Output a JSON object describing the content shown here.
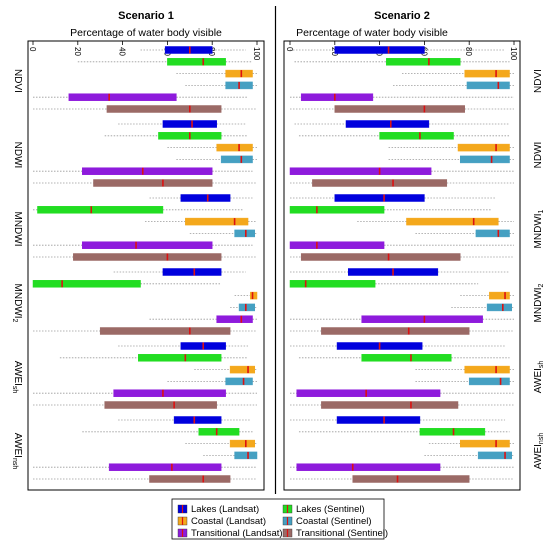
{
  "chart_data": [
    {
      "type": "boxplot",
      "title": "Scenario 1",
      "xlabel": "Percentage of water body visible",
      "xlim": [
        0,
        100
      ],
      "x_ticks": [
        0,
        20,
        40,
        60,
        80,
        100
      ],
      "grid": false,
      "groups": [
        {
          "name": "NDVI",
          "name_sub": "",
          "boxes": [
            {
              "series": "Lakes (Landsat)",
              "min": 48,
              "q1": 59,
              "median": 70,
              "q3": 80,
              "max": 95
            },
            {
              "series": "Lakes (Sentinel)",
              "min": 20,
              "q1": 60,
              "median": 76,
              "q3": 86,
              "max": 98
            },
            {
              "series": "Coastal (Landsat)",
              "min": 64,
              "q1": 86,
              "median": 93,
              "q3": 98,
              "max": 100
            },
            {
              "series": "Coastal (Sentinel)",
              "min": 68,
              "q1": 86,
              "median": 92,
              "q3": 98,
              "max": 100
            },
            {
              "series": "Transitional (Landsat)",
              "min": 0,
              "q1": 16,
              "median": 34,
              "q3": 64,
              "max": 96
            },
            {
              "series": "Transitional (Sentinel)",
              "min": 0,
              "q1": 33,
              "median": 70,
              "q3": 84,
              "max": 100
            }
          ]
        },
        {
          "name": "NDWI",
          "name_sub": "",
          "boxes": [
            {
              "series": "Lakes (Landsat)",
              "min": 38,
              "q1": 58,
              "median": 71,
              "q3": 82,
              "max": 95
            },
            {
              "series": "Lakes (Sentinel)",
              "min": 32,
              "q1": 56,
              "median": 70,
              "q3": 84,
              "max": 96
            },
            {
              "series": "Coastal (Landsat)",
              "min": 60,
              "q1": 82,
              "median": 92,
              "q3": 98,
              "max": 100
            },
            {
              "series": "Coastal (Sentinel)",
              "min": 64,
              "q1": 84,
              "median": 93,
              "q3": 98,
              "max": 100
            },
            {
              "series": "Transitional (Landsat)",
              "min": 0,
              "q1": 22,
              "median": 49,
              "q3": 80,
              "max": 98
            },
            {
              "series": "Transitional (Sentinel)",
              "min": 0,
              "q1": 27,
              "median": 58,
              "q3": 80,
              "max": 100
            }
          ]
        },
        {
          "name": "MNDWI",
          "name_sub": "",
          "boxes": [
            {
              "series": "Lakes (Landsat)",
              "min": 52,
              "q1": 66,
              "median": 78,
              "q3": 88,
              "max": 98
            },
            {
              "series": "Lakes (Sentinel)",
              "min": 0,
              "q1": 2,
              "median": 26,
              "q3": 58,
              "max": 94
            },
            {
              "series": "Coastal (Landsat)",
              "min": 50,
              "q1": 68,
              "median": 90,
              "q3": 96,
              "max": 100
            },
            {
              "series": "Coastal (Sentinel)",
              "min": 70,
              "q1": 90,
              "median": 95,
              "q3": 99,
              "max": 100
            },
            {
              "series": "Transitional (Landsat)",
              "min": 0,
              "q1": 22,
              "median": 46,
              "q3": 80,
              "max": 98
            },
            {
              "series": "Transitional (Sentinel)",
              "min": 0,
              "q1": 18,
              "median": 60,
              "q3": 84,
              "max": 100
            }
          ]
        },
        {
          "name": "MNDWI",
          "name_sub": "2",
          "boxes": [
            {
              "series": "Lakes (Landsat)",
              "min": 36,
              "q1": 58,
              "median": 72,
              "q3": 84,
              "max": 95
            },
            {
              "series": "Lakes (Sentinel)",
              "min": 0,
              "q1": 0,
              "median": 13,
              "q3": 48,
              "max": 84
            },
            {
              "series": "Coastal (Landsat)",
              "min": 90,
              "q1": 97,
              "median": 98,
              "q3": 100,
              "max": 100
            },
            {
              "series": "Coastal (Sentinel)",
              "min": 88,
              "q1": 92,
              "median": 95,
              "q3": 99,
              "max": 100
            },
            {
              "series": "Transitional (Landsat)",
              "min": 52,
              "q1": 82,
              "median": 93,
              "q3": 98,
              "max": 100
            },
            {
              "series": "Transitional (Sentinel)",
              "min": 0,
              "q1": 30,
              "median": 70,
              "q3": 88,
              "max": 100
            }
          ]
        },
        {
          "name": "AWEI",
          "name_sub": "sh",
          "boxes": [
            {
              "series": "Lakes (Landsat)",
              "min": 38,
              "q1": 66,
              "median": 76,
              "q3": 86,
              "max": 96
            },
            {
              "series": "Lakes (Sentinel)",
              "min": 12,
              "q1": 47,
              "median": 68,
              "q3": 84,
              "max": 96
            },
            {
              "series": "Coastal (Landsat)",
              "min": 72,
              "q1": 88,
              "median": 96,
              "q3": 99,
              "max": 100
            },
            {
              "series": "Coastal (Sentinel)",
              "min": 60,
              "q1": 86,
              "median": 94,
              "q3": 98,
              "max": 100
            },
            {
              "series": "Transitional (Landsat)",
              "min": 0,
              "q1": 36,
              "median": 58,
              "q3": 86,
              "max": 100
            },
            {
              "series": "Transitional (Sentinel)",
              "min": 0,
              "q1": 32,
              "median": 63,
              "q3": 82,
              "max": 100
            }
          ]
        },
        {
          "name": "AWEI",
          "name_sub": "nsh",
          "boxes": [
            {
              "series": "Lakes (Landsat)",
              "min": 38,
              "q1": 63,
              "median": 72,
              "q3": 84,
              "max": 97
            },
            {
              "series": "Lakes (Sentinel)",
              "min": 22,
              "q1": 74,
              "median": 82,
              "q3": 92,
              "max": 98
            },
            {
              "series": "Coastal (Landsat)",
              "min": 68,
              "q1": 88,
              "median": 95,
              "q3": 99,
              "max": 100
            },
            {
              "series": "Coastal (Sentinel)",
              "min": 76,
              "q1": 90,
              "median": 96,
              "q3": 100,
              "max": 100
            },
            {
              "series": "Transitional (Landsat)",
              "min": 0,
              "q1": 34,
              "median": 62,
              "q3": 84,
              "max": 100
            },
            {
              "series": "Transitional (Sentinel)",
              "min": 0,
              "q1": 52,
              "median": 76,
              "q3": 88,
              "max": 100
            }
          ]
        }
      ]
    },
    {
      "type": "boxplot",
      "title": "Scenario 2",
      "xlabel": "Percentage of water body visible",
      "xlim": [
        0,
        100
      ],
      "x_ticks": [
        0,
        20,
        40,
        60,
        80,
        100
      ],
      "grid": false,
      "groups": [
        {
          "name": "NDVI",
          "name_sub": "",
          "boxes": [
            {
              "series": "Lakes (Landsat)",
              "min": 0,
              "q1": 20,
              "median": 44,
              "q3": 60,
              "max": 96
            },
            {
              "series": "Lakes (Sentinel)",
              "min": 2,
              "q1": 43,
              "median": 62,
              "q3": 76,
              "max": 98
            },
            {
              "series": "Coastal (Landsat)",
              "min": 50,
              "q1": 78,
              "median": 92,
              "q3": 98,
              "max": 100
            },
            {
              "series": "Coastal (Sentinel)",
              "min": 46,
              "q1": 79,
              "median": 93,
              "q3": 98,
              "max": 100
            },
            {
              "series": "Transitional (Landsat)",
              "min": 0,
              "q1": 5,
              "median": 20,
              "q3": 37,
              "max": 100
            },
            {
              "series": "Transitional (Sentinel)",
              "min": 0,
              "q1": 20,
              "median": 60,
              "q3": 78,
              "max": 100
            }
          ]
        },
        {
          "name": "NDWI",
          "name_sub": "",
          "boxes": [
            {
              "series": "Lakes (Landsat)",
              "min": 2,
              "q1": 25,
              "median": 45,
              "q3": 62,
              "max": 98
            },
            {
              "series": "Lakes (Sentinel)",
              "min": 4,
              "q1": 40,
              "median": 58,
              "q3": 73,
              "max": 98
            },
            {
              "series": "Coastal (Landsat)",
              "min": 44,
              "q1": 75,
              "median": 92,
              "q3": 98,
              "max": 100
            },
            {
              "series": "Coastal (Sentinel)",
              "min": 44,
              "q1": 76,
              "median": 90,
              "q3": 98,
              "max": 100
            },
            {
              "series": "Transitional (Landsat)",
              "min": 0,
              "q1": 0,
              "median": 40,
              "q3": 63,
              "max": 100
            },
            {
              "series": "Transitional (Sentinel)",
              "min": 0,
              "q1": 10,
              "median": 46,
              "q3": 70,
              "max": 100
            }
          ]
        },
        {
          "name": "MNDWI",
          "name_sub": "1",
          "boxes": [
            {
              "series": "Lakes (Landsat)",
              "min": 0,
              "q1": 20,
              "median": 42,
              "q3": 60,
              "max": 92
            },
            {
              "series": "Lakes (Sentinel)",
              "min": 0,
              "q1": 0,
              "median": 12,
              "q3": 42,
              "max": 90
            },
            {
              "series": "Coastal (Landsat)",
              "min": 30,
              "q1": 52,
              "median": 82,
              "q3": 93,
              "max": 100
            },
            {
              "series": "Coastal (Sentinel)",
              "min": 56,
              "q1": 83,
              "median": 93,
              "q3": 98,
              "max": 100
            },
            {
              "series": "Transitional (Landsat)",
              "min": 0,
              "q1": 0,
              "median": 12,
              "q3": 42,
              "max": 100
            },
            {
              "series": "Transitional (Sentinel)",
              "min": 0,
              "q1": 5,
              "median": 44,
              "q3": 76,
              "max": 100
            }
          ]
        },
        {
          "name": "MNDWI",
          "name_sub": "2",
          "boxes": [
            {
              "series": "Lakes (Landsat)",
              "min": 0,
              "q1": 26,
              "median": 46,
              "q3": 66,
              "max": 98
            },
            {
              "series": "Lakes (Sentinel)",
              "min": 0,
              "q1": 0,
              "median": 7,
              "q3": 38,
              "max": 84
            },
            {
              "series": "Coastal (Landsat)",
              "min": 76,
              "q1": 89,
              "median": 96,
              "q3": 98,
              "max": 100
            },
            {
              "series": "Coastal (Sentinel)",
              "min": 72,
              "q1": 88,
              "median": 95,
              "q3": 99,
              "max": 100
            },
            {
              "series": "Transitional (Landsat)",
              "min": 0,
              "q1": 32,
              "median": 60,
              "q3": 86,
              "max": 100
            },
            {
              "series": "Transitional (Sentinel)",
              "min": 0,
              "q1": 14,
              "median": 53,
              "q3": 80,
              "max": 100
            }
          ]
        },
        {
          "name": "AWEI",
          "name_sub": "sh",
          "boxes": [
            {
              "series": "Lakes (Landsat)",
              "min": 0,
              "q1": 21,
              "median": 40,
              "q3": 59,
              "max": 96
            },
            {
              "series": "Lakes (Sentinel)",
              "min": 4,
              "q1": 32,
              "median": 54,
              "q3": 72,
              "max": 98
            },
            {
              "series": "Coastal (Landsat)",
              "min": 56,
              "q1": 78,
              "median": 92,
              "q3": 98,
              "max": 100
            },
            {
              "series": "Coastal (Sentinel)",
              "min": 56,
              "q1": 80,
              "median": 94,
              "q3": 98,
              "max": 100
            },
            {
              "series": "Transitional (Landsat)",
              "min": 0,
              "q1": 3,
              "median": 34,
              "q3": 67,
              "max": 100
            },
            {
              "series": "Transitional (Sentinel)",
              "min": 0,
              "q1": 14,
              "median": 54,
              "q3": 75,
              "max": 100
            }
          ]
        },
        {
          "name": "AWEI",
          "name_sub": "nsh",
          "boxes": [
            {
              "series": "Lakes (Landsat)",
              "min": 0,
              "q1": 21,
              "median": 42,
              "q3": 58,
              "max": 96
            },
            {
              "series": "Lakes (Sentinel)",
              "min": 4,
              "q1": 58,
              "median": 73,
              "q3": 87,
              "max": 98
            },
            {
              "series": "Coastal (Landsat)",
              "min": 62,
              "q1": 76,
              "median": 92,
              "q3": 98,
              "max": 100
            },
            {
              "series": "Coastal (Sentinel)",
              "min": 60,
              "q1": 84,
              "median": 96,
              "q3": 99,
              "max": 100
            },
            {
              "series": "Transitional (Landsat)",
              "min": 0,
              "q1": 3,
              "median": 28,
              "q3": 67,
              "max": 100
            },
            {
              "series": "Transitional (Sentinel)",
              "min": 0,
              "q1": 28,
              "median": 48,
              "q3": 80,
              "max": 100
            }
          ]
        }
      ]
    }
  ],
  "series_colors": {
    "Lakes (Landsat)": "#0000dd",
    "Lakes (Sentinel)": "#22dd22",
    "Coastal (Landsat)": "#f4a81c",
    "Coastal (Sentinel)": "#45a0c2",
    "Transitional (Landsat)": "#8e1bdc",
    "Transitional (Sentinel)": "#9b6a66"
  },
  "median_color": "#dd1111",
  "legend": {
    "placement": "bottom-center",
    "items": [
      {
        "label": "Lakes (Landsat)",
        "series": "Lakes (Landsat)"
      },
      {
        "label": "Lakes (Sentinel)",
        "series": "Lakes (Sentinel)"
      },
      {
        "label": "Coastal (Landsat)",
        "series": "Coastal (Landsat)"
      },
      {
        "label": "Coastal (Sentinel)",
        "series": "Coastal (Sentinel)"
      },
      {
        "label": "Transitional (Landsat)",
        "series": "Transitional (Landsat)"
      },
      {
        "label": "Transitional (Sentinel)",
        "series": "Transitional (Sentinel)"
      }
    ]
  }
}
